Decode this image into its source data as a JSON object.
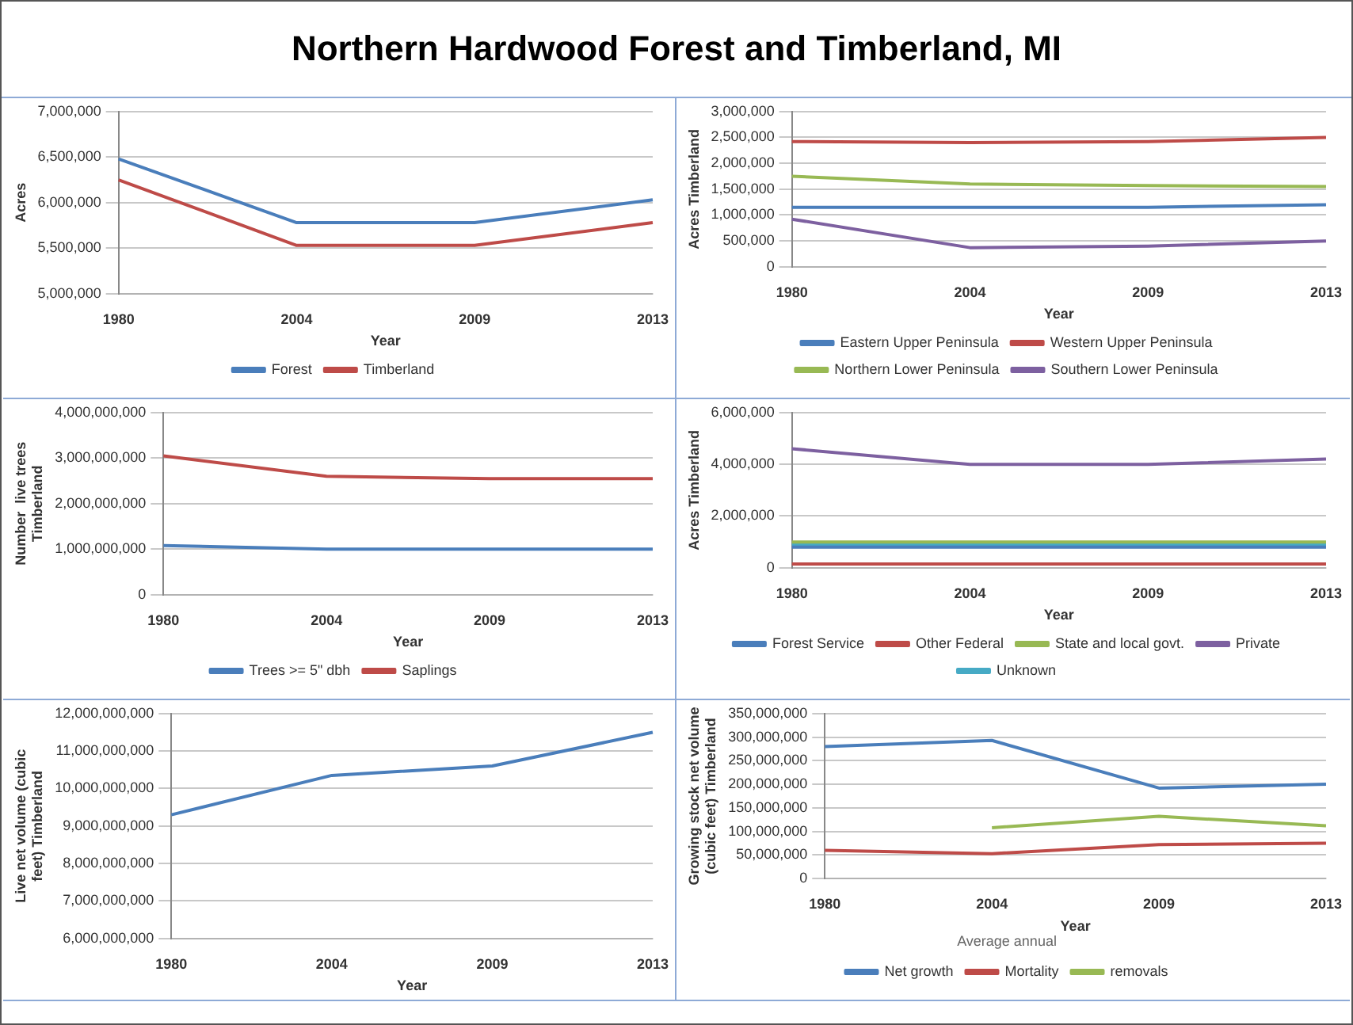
{
  "chart_data": [
    {
      "type": "line",
      "title": "Northern Hardwood Forest and Timberland, MI",
      "categories": [
        "1980",
        "2004",
        "2009",
        "2013"
      ],
      "xlabel": "Year",
      "ylabel": "Acres",
      "ylim": [
        5000000,
        7000000
      ],
      "yticks": [
        {
          "value": 5000000,
          "label": "5,000,000"
        },
        {
          "value": 5500000,
          "label": "5,500,000"
        },
        {
          "value": 6000000,
          "label": "6,000,000"
        },
        {
          "value": 6500000,
          "label": "6,500,000"
        },
        {
          "value": 7000000,
          "label": "7,000,000"
        }
      ],
      "grid": "y",
      "legend": "bottom",
      "series": [
        {
          "name": "Forest",
          "color": "#4a7ebb",
          "values": [
            6480000,
            5780000,
            5780000,
            6030000
          ]
        },
        {
          "name": "Timberland",
          "color": "#be4b48",
          "values": [
            6250000,
            5530000,
            5530000,
            5780000
          ]
        }
      ]
    },
    {
      "type": "line",
      "categories": [
        "1980",
        "2004",
        "2009",
        "2013"
      ],
      "xlabel": "Year",
      "ylabel": "Acres Timberland",
      "ylim": [
        0,
        3000000
      ],
      "yticks": [
        {
          "value": 0,
          "label": "0"
        },
        {
          "value": 500000,
          "label": "500,000"
        },
        {
          "value": 1000000,
          "label": "1,000,000"
        },
        {
          "value": 1500000,
          "label": "1,500,000"
        },
        {
          "value": 2000000,
          "label": "2,000,000"
        },
        {
          "value": 2500000,
          "label": "2,500,000"
        },
        {
          "value": 3000000,
          "label": "3,000,000"
        }
      ],
      "grid": "y",
      "legend": "bottom",
      "series": [
        {
          "name": "Eastern Upper Peninsula",
          "color": "#4a7ebb",
          "values": [
            1150000,
            1150000,
            1150000,
            1200000
          ]
        },
        {
          "name": "Western Upper Peninsula",
          "color": "#be4b48",
          "values": [
            2420000,
            2400000,
            2420000,
            2500000
          ]
        },
        {
          "name": "Northern Lower Peninsula",
          "color": "#98b954",
          "values": [
            1750000,
            1600000,
            1570000,
            1550000
          ]
        },
        {
          "name": "Southern Lower Peninsula",
          "color": "#7d60a0",
          "values": [
            920000,
            370000,
            400000,
            500000
          ]
        }
      ]
    },
    {
      "type": "line",
      "categories": [
        "1980",
        "2004",
        "2009",
        "2013"
      ],
      "xlabel": "Year",
      "ylabel": "Number  live trees Timberland",
      "ylim": [
        0,
        4000000000
      ],
      "yticks": [
        {
          "value": 0,
          "label": "0"
        },
        {
          "value": 1000000000,
          "label": "1,000,000,000"
        },
        {
          "value": 2000000000,
          "label": "2,000,000,000"
        },
        {
          "value": 3000000000,
          "label": "3,000,000,000"
        },
        {
          "value": 4000000000,
          "label": "4,000,000,000"
        }
      ],
      "grid": "y",
      "legend": "bottom",
      "series": [
        {
          "name": "Trees >= 5\" dbh",
          "color": "#4a7ebb",
          "values": [
            1080000000,
            1000000000,
            1000000000,
            1000000000
          ]
        },
        {
          "name": "Saplings",
          "color": "#be4b48",
          "values": [
            3050000000,
            2600000000,
            2550000000,
            2550000000
          ]
        }
      ]
    },
    {
      "type": "line",
      "categories": [
        "1980",
        "2004",
        "2009",
        "2013"
      ],
      "xlabel": "Year",
      "ylabel": "Acres Timberland",
      "ylim": [
        0,
        6000000
      ],
      "yticks": [
        {
          "value": 0,
          "label": "0"
        },
        {
          "value": 2000000,
          "label": "2,000,000"
        },
        {
          "value": 4000000,
          "label": "4,000,000"
        },
        {
          "value": 6000000,
          "label": "6,000,000"
        }
      ],
      "grid": "y",
      "legend": "bottom",
      "series": [
        {
          "name": "Forest Service",
          "color": "#4a7ebb",
          "values": [
            800000,
            800000,
            800000,
            800000
          ]
        },
        {
          "name": "Other Federal",
          "color": "#be4b48",
          "values": [
            150000,
            150000,
            150000,
            150000
          ]
        },
        {
          "name": "State and local govt.",
          "color": "#98b954",
          "values": [
            1000000,
            1000000,
            1000000,
            1000000
          ]
        },
        {
          "name": "Private",
          "color": "#7d60a0",
          "values": [
            4600000,
            4000000,
            4000000,
            4200000
          ]
        },
        {
          "name": "Unknown",
          "color": "#46aac5",
          "values": [
            900000,
            900000,
            900000,
            900000
          ]
        }
      ]
    },
    {
      "type": "line",
      "categories": [
        "1980",
        "2004",
        "2009",
        "2013"
      ],
      "xlabel": "Year",
      "ylabel": "Live net volume (cubic feet) Timberland",
      "ylim": [
        6000000000,
        12000000000
      ],
      "yticks": [
        {
          "value": 6000000000,
          "label": "6,000,000,000"
        },
        {
          "value": 7000000000,
          "label": "7,000,000,000"
        },
        {
          "value": 8000000000,
          "label": "8,000,000,000"
        },
        {
          "value": 9000000000,
          "label": "9,000,000,000"
        },
        {
          "value": 10000000000,
          "label": "10,000,000,000"
        },
        {
          "value": 11000000000,
          "label": "11,000,000,000"
        },
        {
          "value": 12000000000,
          "label": "12,000,000,000"
        }
      ],
      "grid": "y",
      "series": [
        {
          "color": "#4a7ebb",
          "values": [
            9300000000,
            10350000000,
            10600000000,
            11500000000
          ]
        }
      ]
    },
    {
      "type": "line",
      "categories": [
        "1980",
        "2004",
        "2009",
        "2013"
      ],
      "xlabel": "Year",
      "ylabel": "Growing stock net volume (cubic feet) Timberland",
      "ylim": [
        0,
        350000000
      ],
      "yticks": [
        {
          "value": 0,
          "label": "0"
        },
        {
          "value": 50000000,
          "label": "50,000,000"
        },
        {
          "value": 100000000,
          "label": "100,000,000"
        },
        {
          "value": 150000000,
          "label": "150,000,000"
        },
        {
          "value": 200000000,
          "label": "200,000,000"
        },
        {
          "value": 250000000,
          "label": "250,000,000"
        },
        {
          "value": 300000000,
          "label": "300,000,000"
        },
        {
          "value": 350000000,
          "label": "350,000,000"
        }
      ],
      "grid": "y",
      "legend": "bottom",
      "legend_title": "Average annual",
      "series": [
        {
          "name": "Net growth",
          "color": "#4a7ebb",
          "values": [
            280000000,
            293000000,
            192000000,
            200000000
          ]
        },
        {
          "name": "Mortality",
          "color": "#be4b48",
          "values": [
            60000000,
            53000000,
            72000000,
            75000000
          ]
        },
        {
          "name": "removals",
          "color": "#98b954",
          "values": [
            null,
            108000000,
            132000000,
            112000000
          ]
        }
      ]
    }
  ]
}
